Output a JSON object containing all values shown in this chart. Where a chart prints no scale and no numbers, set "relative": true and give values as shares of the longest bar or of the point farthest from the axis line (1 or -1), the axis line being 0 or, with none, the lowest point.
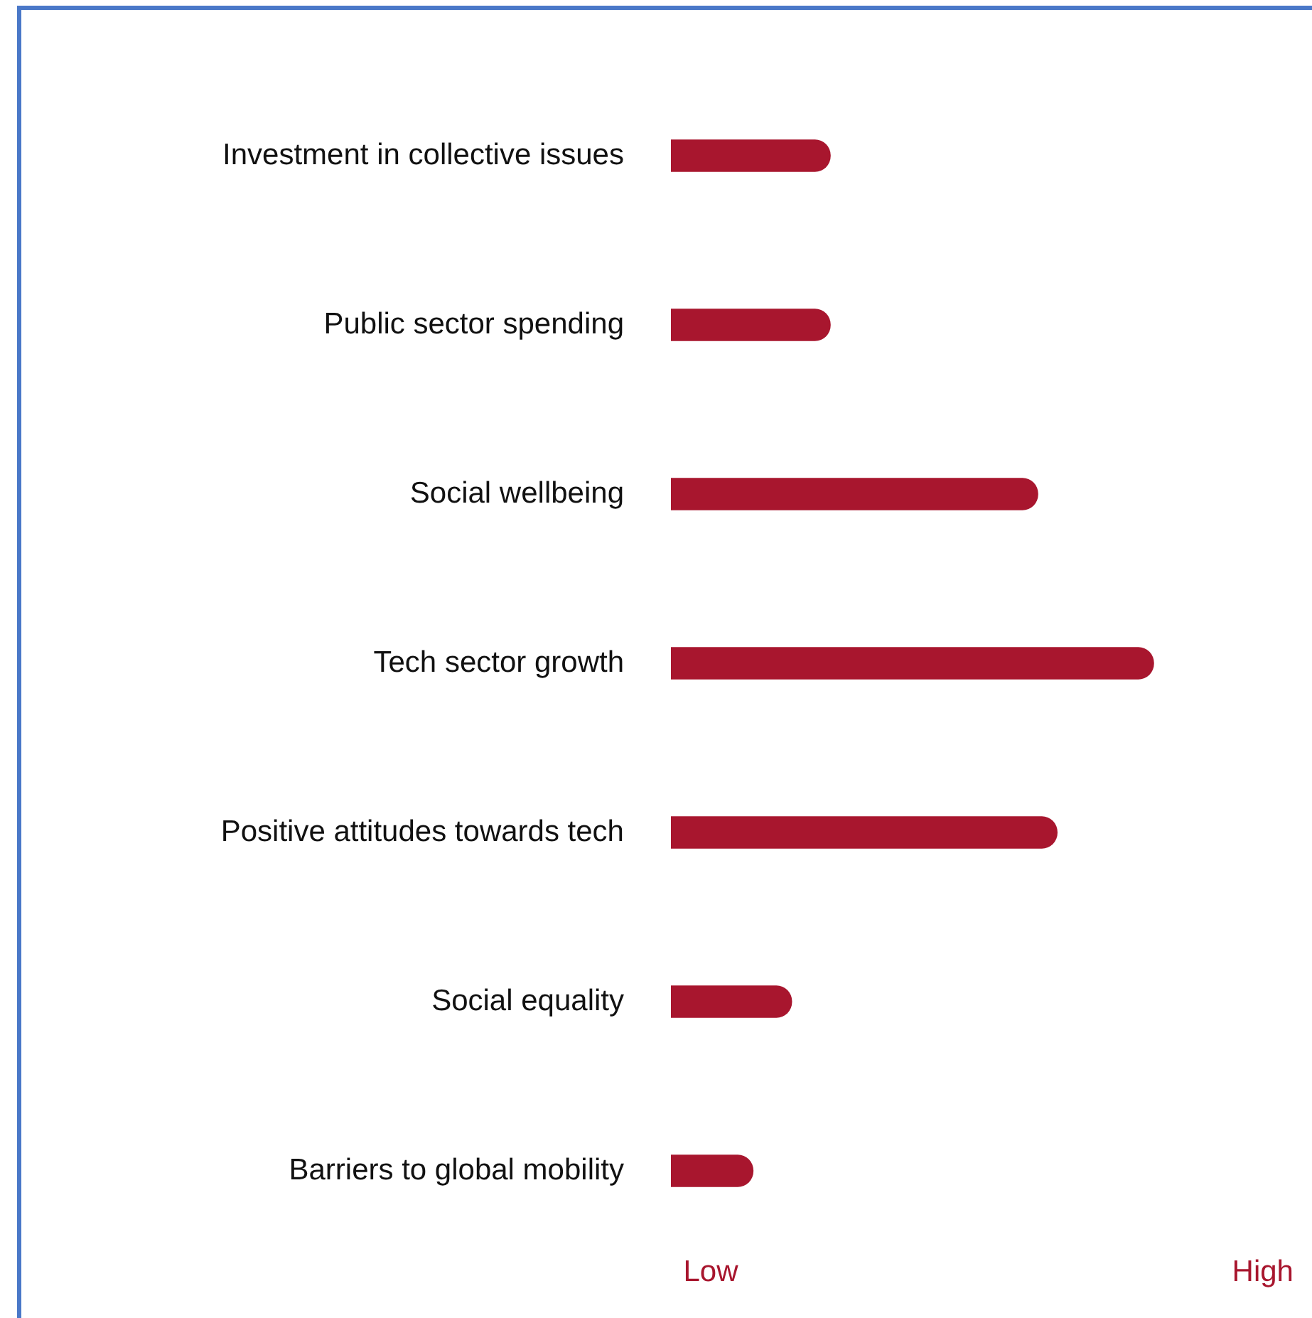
{
  "chart_data": {
    "type": "bar",
    "orientation": "horizontal",
    "relative": true,
    "categories": [
      "Investment in collective issues",
      "Public sector spending",
      "Social wellbeing",
      "Tech sector growth",
      "Positive attitudes towards tech",
      "Social equality",
      "Barriers to global mobility"
    ],
    "values": [
      0.33,
      0.33,
      0.76,
      1,
      0.8,
      0.25,
      0.17
    ],
    "color": "#a8162e",
    "annotations": [
      "Low",
      "High"
    ]
  }
}
